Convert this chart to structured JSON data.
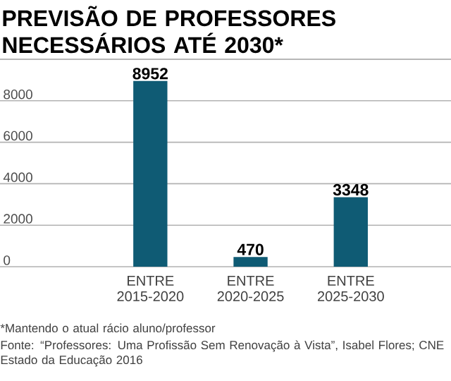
{
  "chart_data": {
    "type": "bar",
    "title": "PREVISÃO DE PROFESSORES NECESSÁRIOS ATÉ 2030*",
    "categories": [
      "ENTRE 2015-2020",
      "ENTRE 2020-2025",
      "ENTRE 2025-2030"
    ],
    "values": [
      8952,
      470,
      3348
    ],
    "color": "#0f5b74",
    "ylim": [
      0,
      10000
    ],
    "yticks": [
      0,
      2000,
      4000,
      6000,
      8000,
      {
        "value": 10000,
        "label": null
      }
    ],
    "grid": "y",
    "data_labels": true,
    "annotations": [
      "*Mantendo o atual rácio aluno/professor",
      "Fonte: “Professores: Uma Profissão Sem Renovação à Vista”, Isabel Flores; CNE Estado da Educação 2016"
    ]
  }
}
